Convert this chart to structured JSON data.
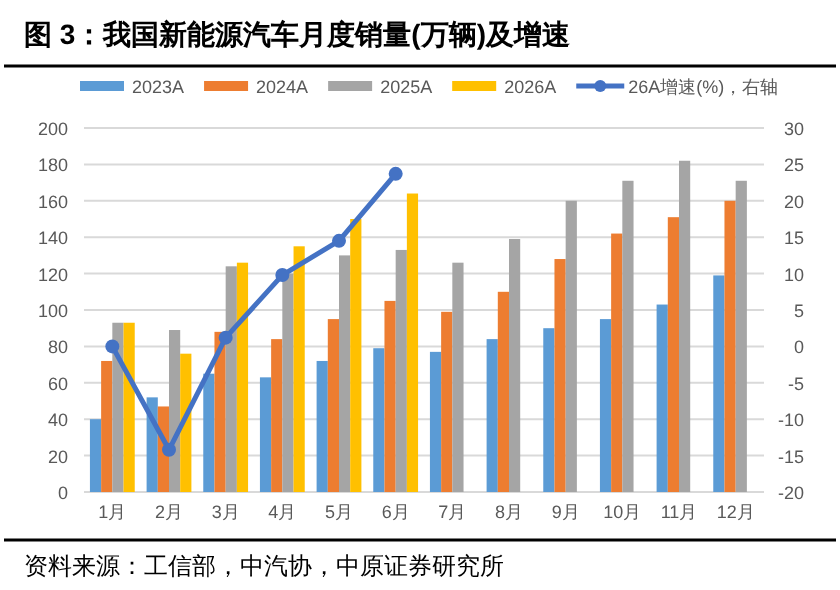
{
  "chart_data": {
    "type": "bar",
    "title": "图 3：我国新能源汽车月度销量(万辆)及增速",
    "annotations": [
      "资料来源：工信部，中汽协，中原证券研究所"
    ],
    "categories": [
      "1月",
      "2月",
      "3月",
      "4月",
      "5月",
      "6月",
      "7月",
      "8月",
      "9月",
      "10月",
      "11月",
      "12月"
    ],
    "series": [
      {
        "name": "2023A",
        "color": "#5b9bd5",
        "values": [
          40,
          52,
          65,
          63,
          72,
          79,
          77,
          84,
          90,
          95,
          103,
          119
        ]
      },
      {
        "name": "2024A",
        "color": "#ed7d31",
        "values": [
          72,
          47,
          88,
          84,
          95,
          105,
          99,
          110,
          128,
          142,
          151,
          160
        ]
      },
      {
        "name": "2025A",
        "color": "#a5a5a5",
        "values": [
          93,
          89,
          124,
          120,
          130,
          133,
          126,
          139,
          160,
          171,
          182,
          171
        ]
      },
      {
        "name": "2026A",
        "color": "#ffc000",
        "values": [
          93,
          76,
          126,
          135,
          150,
          164,
          null,
          null,
          null,
          null,
          null,
          null
        ]
      },
      {
        "name": "26A增速(%)，右轴",
        "color": "#4472c4",
        "type": "line",
        "axis": "y2",
        "values": [
          0.0,
          -14.2,
          1.2,
          9.8,
          14.5,
          23.7,
          null,
          null,
          null,
          null,
          null,
          null
        ]
      }
    ],
    "ylim": [
      0,
      200
    ],
    "yticks": [
      0,
      20,
      40,
      60,
      80,
      100,
      120,
      140,
      160,
      180,
      200
    ],
    "y2lim": [
      -20,
      30
    ],
    "y2ticks": [
      -20,
      -15,
      -10,
      -5,
      0,
      5,
      10,
      15,
      20,
      25,
      30
    ],
    "grid": "y",
    "legend": "top",
    "marker": "circle"
  }
}
